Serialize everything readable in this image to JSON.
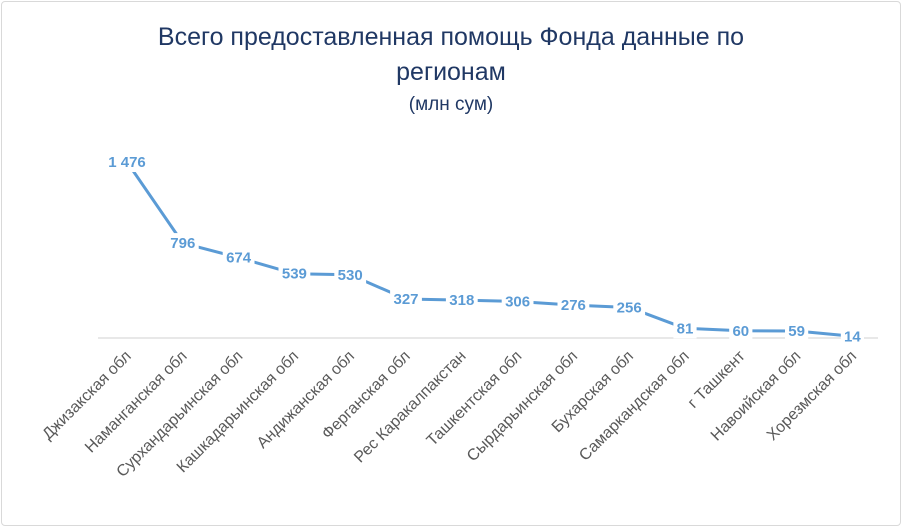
{
  "chart_data": {
    "type": "line",
    "title": "Всего предоставленная помощь Фонда данные по регионам",
    "subtitle": "(млн сум)",
    "categories": [
      "Джизакская обл",
      "Наманганская обл",
      "Сурхандарьинская обл",
      "Кашкадарьинская обл",
      "Андижанская обл",
      "Ферганская обл",
      "Рес Каракалпакстан",
      "Ташкентская обл",
      "Сырдарьинская обл",
      "Бухарская обл",
      "Самаркандская обл",
      "г Ташкент",
      "Навоийская обл",
      "Хорезмская обл"
    ],
    "values": [
      1476,
      796,
      674,
      539,
      530,
      327,
      318,
      306,
      276,
      256,
      81,
      60,
      59,
      14
    ],
    "data_labels": [
      "1 476",
      "796",
      "674",
      "539",
      "530",
      "327",
      "318",
      "306",
      "276",
      "256",
      "81",
      "60",
      "59",
      "14"
    ],
    "ylim": [
      0,
      1476
    ],
    "grid": false,
    "legend": "none",
    "line_color": "#5b9bd5",
    "axis_color": "#d9d9d9",
    "title_color": "#203864"
  }
}
